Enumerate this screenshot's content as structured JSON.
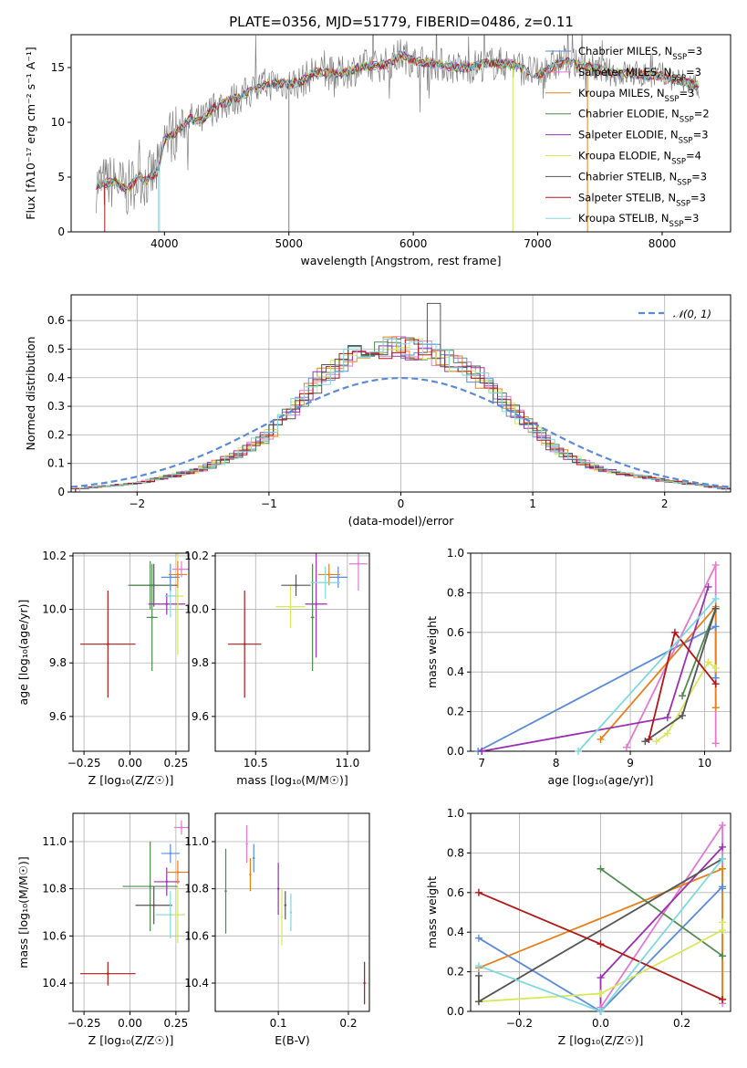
{
  "colors": {
    "Chabrier MILES": "#5b8bd8",
    "Salpeter MILES": "#e27ad0",
    "Kroupa MILES": "#e8801a",
    "Chabrier ELODIE": "#4f8a4f",
    "Salpeter ELODIE": "#9a30b0",
    "Kroupa ELODIE": "#d7e85a",
    "Chabrier STELIB": "#555555",
    "Salpeter STELIB": "#b01818",
    "Kroupa STELIB": "#80d8e0",
    "data": "#808080",
    "gauss": "#5b8bd8"
  },
  "chart_data": [
    {
      "id": "spectrum",
      "type": "line",
      "title": "PLATE=0356, MJD=51779, FIBERID=0486, z=0.11",
      "xlabel": "wavelength [Angstrom, rest frame]",
      "ylabel": "Flux [fλ10⁻¹⁷ erg cm⁻² s⁻¹ A⁻¹]",
      "xlim": [
        3250,
        8550
      ],
      "ylim": [
        0,
        18
      ],
      "xticks": [
        4000,
        5000,
        6000,
        7000,
        8000
      ],
      "yticks": [
        0,
        5,
        10,
        15
      ],
      "legend_position": "upper right",
      "legend": [
        "Chabrier MILES, N_SSP=3",
        "Salpeter MILES, N_SSP=3",
        "Kroupa MILES, N_SSP=3",
        "Chabrier ELODIE, N_SSP=2",
        "Salpeter ELODIE, N_SSP=3",
        "Kroupa ELODIE, N_SSP=4",
        "Chabrier STELIB, N_SSP=3",
        "Salpeter STELIB, N_SSP=3",
        "Kroupa STELIB, N_SSP=3"
      ],
      "continuum": {
        "x": [
          3450,
          3600,
          3700,
          3800,
          3850,
          3950,
          4000,
          4100,
          4200,
          4300,
          4400,
          4600,
          4800,
          4900,
          5000,
          5100,
          5200,
          5400,
          5600,
          5800,
          5900,
          6000,
          6200,
          6400,
          6600,
          6800,
          7000,
          7200,
          7400,
          7600,
          7800,
          8000,
          8200,
          8300
        ],
        "y": [
          4.3,
          4.6,
          3.8,
          5.2,
          4.6,
          5.6,
          8.4,
          9.2,
          10.3,
          10.1,
          11.4,
          12.3,
          13.4,
          13.6,
          13.5,
          13.7,
          14.6,
          14.4,
          15.1,
          15.3,
          16.2,
          15.6,
          15.3,
          14.9,
          15.4,
          15.3,
          14.3,
          15.6,
          15.1,
          14.5,
          14.4,
          14.2,
          13.6,
          13.3
        ]
      }
    },
    {
      "id": "residuals",
      "type": "bar",
      "xlabel": "(data-model)/error",
      "ylabel": "Normed distribution",
      "xlim": [
        -2.5,
        2.5
      ],
      "ylim": [
        0,
        0.69
      ],
      "xticks": [
        -2,
        -1,
        0,
        1,
        2
      ],
      "yticks": [
        0.0,
        0.1,
        0.2,
        0.3,
        0.4,
        0.5,
        0.6
      ],
      "legend": [
        "𝒩(0, 1)"
      ],
      "bin_width": 0.1,
      "histogram_envelope": {
        "x": [
          -2.5,
          -2.0,
          -1.5,
          -1.2,
          -1.0,
          -0.8,
          -0.6,
          -0.4,
          -0.2,
          0.0,
          0.2,
          0.4,
          0.6,
          0.8,
          1.0,
          1.2,
          1.5,
          2.0,
          2.5
        ],
        "y": [
          0.01,
          0.03,
          0.08,
          0.14,
          0.2,
          0.3,
          0.4,
          0.47,
          0.5,
          0.51,
          0.49,
          0.45,
          0.4,
          0.31,
          0.22,
          0.14,
          0.08,
          0.04,
          0.01
        ]
      },
      "highlight": {
        "x": 0.25,
        "y": 0.66
      }
    },
    {
      "id": "age_vs_Z",
      "type": "scatter",
      "xlabel": "Z [log₁₀(Z/Z☉)]",
      "ylabel": "age  [log₁₀(age/yr)]",
      "xlim": [
        -0.31,
        0.32
      ],
      "ylim": [
        9.47,
        10.21
      ],
      "xticks": [
        "-0.25",
        "0.00",
        "0.25"
      ],
      "yticks": [
        "9.6",
        "9.8",
        "10.0",
        "10.2"
      ],
      "points": [
        {
          "model": "Salpeter STELIB",
          "x": -0.12,
          "y": 9.87,
          "xerr": 0.15,
          "yerr": 0.2
        },
        {
          "model": "Chabrier ELODIE",
          "x": 0.12,
          "y": 9.97,
          "xerr": 0.03,
          "yerr": 0.2
        },
        {
          "model": "Chabrier STELIB",
          "x": 0.13,
          "y": 10.09,
          "xerr": 0.13,
          "yerr": 0.08
        },
        {
          "model": "Chabrier ELODIE",
          "x": 0.11,
          "y": 10.09,
          "xerr": 0.12,
          "yerr": 0.09
        },
        {
          "model": "Salpeter ELODIE",
          "x": 0.2,
          "y": 10.02,
          "xerr": 0.1,
          "yerr": 0.04
        },
        {
          "model": "Kroupa ELODIE",
          "x": 0.26,
          "y": 10.05,
          "xerr": 0.03,
          "yerr": 0.22
        },
        {
          "model": "Kroupa STELIB",
          "x": 0.22,
          "y": 10.05,
          "xerr": 0.03,
          "yerr": 0.08
        },
        {
          "model": "Chabrier MILES",
          "x": 0.22,
          "y": 10.12,
          "xerr": 0.05,
          "yerr": 0.05
        },
        {
          "model": "Kroupa MILES",
          "x": 0.26,
          "y": 10.13,
          "xerr": 0.05,
          "yerr": 0.05
        },
        {
          "model": "Salpeter MILES",
          "x": 0.28,
          "y": 10.15,
          "xerr": 0.05,
          "yerr": 0.03
        }
      ]
    },
    {
      "id": "age_vs_mass",
      "type": "scatter",
      "xlabel": "mass [log₁₀(M/M☉)]",
      "ylabel": "",
      "xlim": [
        10.28,
        11.12
      ],
      "ylim": [
        9.47,
        10.21
      ],
      "xticks": [
        "10.5",
        "11.0"
      ],
      "yticks": [
        "9.6",
        "9.8",
        "10.0",
        "10.2"
      ],
      "points": [
        {
          "model": "Salpeter STELIB",
          "x": 10.44,
          "y": 9.87,
          "xerr": 0.09,
          "yerr": 0.2
        },
        {
          "model": "Chabrier ELODIE",
          "x": 10.81,
          "y": 9.97,
          "xerr": 0.01,
          "yerr": 0.2
        },
        {
          "model": "Kroupa ELODIE",
          "x": 10.69,
          "y": 10.01,
          "xerr": 0.08,
          "yerr": 0.08
        },
        {
          "model": "Salpeter ELODIE",
          "x": 10.83,
          "y": 10.02,
          "xerr": 0.06,
          "yerr": 0.2
        },
        {
          "model": "Chabrier STELIB",
          "x": 10.72,
          "y": 10.09,
          "xerr": 0.08,
          "yerr": 0.04
        },
        {
          "model": "Chabrier MILES",
          "x": 10.95,
          "y": 10.12,
          "xerr": 0.05,
          "yerr": 0.04
        },
        {
          "model": "Kroupa MILES",
          "x": 10.9,
          "y": 10.13,
          "xerr": 0.06,
          "yerr": 0.04
        },
        {
          "model": "Salpeter MILES",
          "x": 11.06,
          "y": 10.17,
          "xerr": 0.05,
          "yerr": 0.1
        },
        {
          "model": "Kroupa STELIB",
          "x": 10.88,
          "y": 10.1,
          "xerr": 0.08,
          "yerr": 0.06
        }
      ]
    },
    {
      "id": "weight_vs_age",
      "type": "line",
      "xlabel": "age  [log₁₀(age/yr)]",
      "ylabel": "mass weight",
      "xlim": [
        6.85,
        10.35
      ],
      "ylim": [
        0,
        1
      ],
      "xticks": [
        "7",
        "8",
        "9",
        "10"
      ],
      "yticks": [
        "0.0",
        "0.2",
        "0.4",
        "0.6",
        "0.8",
        "1.0"
      ],
      "series": [
        {
          "model": "Chabrier MILES",
          "x": [
            6.95,
            10.15,
            10.15
          ],
          "y": [
            0.0,
            0.63,
            0.37
          ]
        },
        {
          "model": "Salpeter MILES",
          "x": [
            8.95,
            10.15,
            10.15
          ],
          "y": [
            0.02,
            0.94,
            0.04
          ]
        },
        {
          "model": "Kroupa MILES",
          "x": [
            8.6,
            10.15,
            10.15
          ],
          "y": [
            0.06,
            0.73,
            0.22
          ]
        },
        {
          "model": "Chabrier ELODIE",
          "x": [
            9.7,
            10.15
          ],
          "y": [
            0.28,
            0.72
          ]
        },
        {
          "model": "Salpeter ELODIE",
          "x": [
            7.0,
            9.5,
            10.05
          ],
          "y": [
            0.0,
            0.17,
            0.83
          ]
        },
        {
          "model": "Kroupa ELODIE",
          "x": [
            9.35,
            9.5,
            10.05,
            10.15
          ],
          "y": [
            0.05,
            0.09,
            0.45,
            0.42
          ]
        },
        {
          "model": "Chabrier STELIB",
          "x": [
            9.2,
            9.7,
            10.15
          ],
          "y": [
            0.05,
            0.18,
            0.72
          ]
        },
        {
          "model": "Salpeter STELIB",
          "x": [
            9.25,
            9.6,
            10.15
          ],
          "y": [
            0.06,
            0.6,
            0.34
          ]
        },
        {
          "model": "Kroupa STELIB",
          "x": [
            8.3,
            10.15
          ],
          "y": [
            0.0,
            0.77
          ]
        }
      ]
    },
    {
      "id": "mass_vs_Z",
      "type": "scatter",
      "xlabel": "Z [log₁₀(Z/Z☉)]",
      "ylabel": "mass [log₁₀(M/M☉)]",
      "xlim": [
        -0.31,
        0.32
      ],
      "ylim": [
        10.28,
        11.12
      ],
      "xticks": [
        "-0.25",
        "0.00",
        "0.25"
      ],
      "yticks": [
        "10.4",
        "10.6",
        "10.8",
        "11.0"
      ],
      "points": [
        {
          "model": "Salpeter STELIB",
          "x": -0.12,
          "y": 10.44,
          "xerr": 0.15,
          "yerr": 0.05
        },
        {
          "model": "Chabrier ELODIE",
          "x": 0.11,
          "y": 10.81,
          "xerr": 0.15,
          "yerr": 0.19
        },
        {
          "model": "Chabrier STELIB",
          "x": 0.13,
          "y": 10.73,
          "xerr": 0.1,
          "yerr": 0.08
        },
        {
          "model": "Salpeter ELODIE",
          "x": 0.2,
          "y": 10.83,
          "xerr": 0.07,
          "yerr": 0.06
        },
        {
          "model": "Kroupa STELIB",
          "x": 0.22,
          "y": 10.69,
          "xerr": 0.08,
          "yerr": 0.1
        },
        {
          "model": "Kroupa ELODIE",
          "x": 0.26,
          "y": 10.69,
          "xerr": 0.03,
          "yerr": 0.12
        },
        {
          "model": "Chabrier MILES",
          "x": 0.22,
          "y": 10.95,
          "xerr": 0.05,
          "yerr": 0.04
        },
        {
          "model": "Kroupa MILES",
          "x": 0.26,
          "y": 10.87,
          "xerr": 0.06,
          "yerr": 0.05
        },
        {
          "model": "Salpeter MILES",
          "x": 0.28,
          "y": 11.06,
          "xerr": 0.04,
          "yerr": 0.03
        }
      ]
    },
    {
      "id": "mass_vs_ebv",
      "type": "scatter",
      "xlabel": "E(B-V)",
      "ylabel": "",
      "xlim": [
        0.01,
        0.23
      ],
      "ylim": [
        10.28,
        11.12
      ],
      "xticks": [
        "0.1",
        "0.2"
      ],
      "yticks": [
        "10.4",
        "10.6",
        "10.8",
        "11.0"
      ],
      "points": [
        {
          "model": "Chabrier ELODIE",
          "x": 0.025,
          "y": 10.79,
          "yerr": 0.18
        },
        {
          "model": "Salpeter MILES",
          "x": 0.055,
          "y": 10.99,
          "yerr": 0.08
        },
        {
          "model": "Kroupa MILES",
          "x": 0.06,
          "y": 10.86,
          "yerr": 0.07
        },
        {
          "model": "Chabrier MILES",
          "x": 0.065,
          "y": 10.93,
          "yerr": 0.06
        },
        {
          "model": "Salpeter ELODIE",
          "x": 0.1,
          "y": 10.8,
          "yerr": 0.11
        },
        {
          "model": "Kroupa ELODIE",
          "x": 0.105,
          "y": 10.68,
          "yerr": 0.12
        },
        {
          "model": "Chabrier STELIB",
          "x": 0.11,
          "y": 10.73,
          "yerr": 0.06
        },
        {
          "model": "Kroupa STELIB",
          "x": 0.118,
          "y": 10.7,
          "yerr": 0.08
        },
        {
          "model": "Salpeter STELIB",
          "x": 0.223,
          "y": 10.4,
          "yerr": 0.09
        }
      ]
    },
    {
      "id": "weight_vs_Z",
      "type": "line",
      "xlabel": "Z [log₁₀(Z/Z☉)]",
      "ylabel": "mass weight",
      "xlim": [
        -0.32,
        0.32
      ],
      "ylim": [
        0,
        1
      ],
      "xticks": [
        "-0.2",
        "0.0",
        "0.2"
      ],
      "yticks": [
        "0.0",
        "0.2",
        "0.4",
        "0.6",
        "0.8",
        "1.0"
      ],
      "series": [
        {
          "model": "Chabrier MILES",
          "x": [
            -0.3,
            0.0,
            0.3,
            0.3
          ],
          "y": [
            0.37,
            0.0,
            0.63,
            0.62
          ]
        },
        {
          "model": "Salpeter MILES",
          "x": [
            0.0,
            0.3,
            0.3
          ],
          "y": [
            0.02,
            0.94,
            0.04
          ]
        },
        {
          "model": "Kroupa MILES",
          "x": [
            -0.3,
            0.3,
            0.3
          ],
          "y": [
            0.22,
            0.72,
            0.06
          ]
        },
        {
          "model": "Chabrier ELODIE",
          "x": [
            0.0,
            0.3
          ],
          "y": [
            0.72,
            0.28
          ]
        },
        {
          "model": "Salpeter ELODIE",
          "x": [
            0.0,
            0.0,
            0.3
          ],
          "y": [
            0.0,
            0.17,
            0.83
          ]
        },
        {
          "model": "Kroupa ELODIE",
          "x": [
            -0.3,
            0.0,
            0.3,
            0.3
          ],
          "y": [
            0.05,
            0.09,
            0.41,
            0.45
          ]
        },
        {
          "model": "Chabrier STELIB",
          "x": [
            -0.3,
            -0.3,
            0.3
          ],
          "y": [
            0.18,
            0.05,
            0.77
          ]
        },
        {
          "model": "Salpeter STELIB",
          "x": [
            -0.3,
            0.0,
            0.3
          ],
          "y": [
            0.6,
            0.34,
            0.06
          ]
        },
        {
          "model": "Kroupa STELIB",
          "x": [
            -0.3,
            0.0,
            0.3
          ],
          "y": [
            0.23,
            0.0,
            0.77
          ]
        }
      ]
    }
  ]
}
